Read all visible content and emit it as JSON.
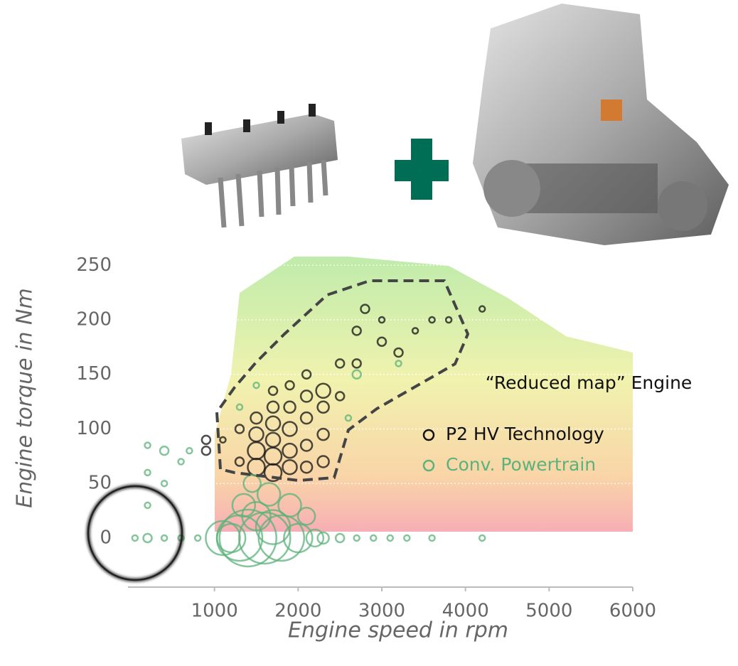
{
  "chart_data": {
    "type": "bubble",
    "x_label": "Engine speed in rpm",
    "y_label": "Engine torque in Nm",
    "annotation": "“Reduced map” Engine",
    "xlim": [
      0,
      6000
    ],
    "ylim": [
      -45,
      258
    ],
    "xticks": [
      1000,
      2000,
      3000,
      4000,
      5000,
      6000
    ],
    "yticks": [
      0,
      50,
      100,
      150,
      200,
      250
    ],
    "grid": true,
    "series": [
      {
        "name": "P2 HV Technology",
        "color": "#111111",
        "x": [
          900,
          900,
          1100,
          1300,
          1300,
          1500,
          1500,
          1500,
          1500,
          1700,
          1700,
          1700,
          1700,
          1700,
          1700,
          1900,
          1900,
          1900,
          1900,
          1900,
          2100,
          2100,
          2100,
          2100,
          2100,
          2300,
          2300,
          2300,
          2300,
          2500,
          2500,
          2700,
          2700,
          2800,
          3000,
          3000,
          3200,
          3400,
          3600,
          3800,
          4200
        ],
        "y": [
          80,
          90,
          90,
          70,
          100,
          65,
          80,
          95,
          110,
          60,
          75,
          90,
          105,
          120,
          135,
          65,
          80,
          100,
          120,
          140,
          65,
          85,
          110,
          130,
          150,
          70,
          95,
          120,
          135,
          130,
          160,
          160,
          190,
          210,
          180,
          200,
          170,
          190,
          200,
          200,
          210
        ],
        "size": [
          3,
          3,
          2,
          3,
          3,
          6,
          6,
          5,
          4,
          6,
          6,
          5,
          5,
          4,
          3,
          5,
          5,
          5,
          4,
          3,
          4,
          4,
          4,
          4,
          3,
          4,
          4,
          4,
          5,
          3,
          3,
          3,
          3,
          3,
          3,
          2,
          3,
          2,
          2,
          2,
          2
        ]
      },
      {
        "name": "Conv. Powertrain",
        "color": "#5cb27a",
        "x": [
          50,
          200,
          400,
          600,
          800,
          200,
          200,
          200,
          400,
          400,
          600,
          700,
          1100,
          1200,
          1300,
          1350,
          1400,
          1450,
          1500,
          1600,
          1650,
          1700,
          1800,
          1900,
          2000,
          2100,
          2200,
          2300,
          2500,
          2700,
          2900,
          3100,
          3300,
          3600,
          4200,
          1300,
          1500,
          2600,
          2700,
          3200
        ],
        "y": [
          0,
          0,
          0,
          0,
          0,
          30,
          60,
          85,
          50,
          80,
          70,
          80,
          0,
          0,
          0,
          30,
          0,
          50,
          20,
          0,
          40,
          10,
          0,
          30,
          0,
          20,
          0,
          0,
          0,
          0,
          0,
          0,
          0,
          0,
          0,
          120,
          140,
          110,
          150,
          160
        ],
        "size": [
          2,
          3,
          2,
          2,
          2,
          2,
          2,
          2,
          2,
          3,
          2,
          2,
          12,
          10,
          16,
          8,
          20,
          6,
          10,
          18,
          8,
          12,
          16,
          8,
          10,
          6,
          6,
          4,
          3,
          2,
          2,
          2,
          2,
          2,
          2,
          2,
          2,
          2,
          3,
          2
        ]
      }
    ]
  }
}
